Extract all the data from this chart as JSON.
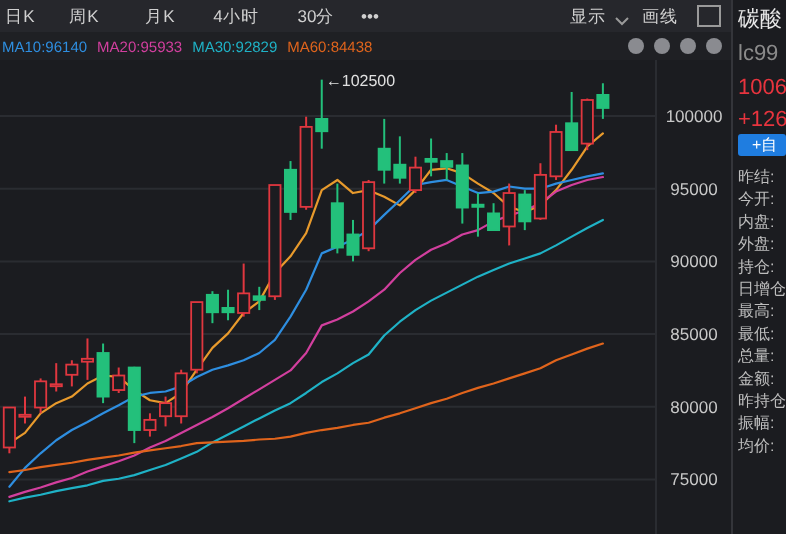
{
  "chart_data": {
    "type": "candlestick",
    "categories": [
      null,
      null,
      null,
      null,
      null,
      null,
      null,
      null,
      null,
      null,
      null,
      null,
      null,
      null,
      null,
      null,
      null,
      null,
      null,
      null,
      null,
      null,
      null,
      null,
      null,
      null,
      null,
      null,
      null,
      null,
      null,
      null,
      null,
      null,
      null,
      null,
      null,
      null,
      null
    ],
    "ohlc": [
      [
        77200,
        79950,
        76800,
        79950
      ],
      [
        79450,
        80700,
        78850,
        79450
      ],
      [
        79950,
        81950,
        79550,
        81750
      ],
      [
        81550,
        83000,
        81050,
        81550
      ],
      [
        82200,
        83200,
        81400,
        82900
      ],
      [
        83100,
        84700,
        81850,
        83300
      ],
      [
        83700,
        84350,
        80250,
        80700
      ],
      [
        81150,
        82700,
        80950,
        82150
      ],
      [
        82700,
        82750,
        77500,
        78400
      ],
      [
        78400,
        79550,
        77950,
        79100
      ],
      [
        79350,
        80700,
        78650,
        80250
      ],
      [
        79350,
        82550,
        78850,
        82300
      ],
      [
        82550,
        87200,
        82300,
        87200
      ],
      [
        87700,
        87950,
        85750,
        86500
      ],
      [
        86800,
        88050,
        85950,
        86500
      ],
      [
        86450,
        89850,
        86200,
        87800
      ],
      [
        87600,
        88250,
        86650,
        87350
      ],
      [
        87600,
        95250,
        87350,
        95250
      ],
      [
        96300,
        96900,
        92850,
        93400
      ],
      [
        93750,
        99950,
        93550,
        99250
      ],
      [
        99800,
        102500,
        97750,
        98950
      ],
      [
        94000,
        95350,
        90550,
        90950
      ],
      [
        91850,
        92850,
        90000,
        90450
      ],
      [
        90900,
        95600,
        90700,
        95450
      ],
      [
        97750,
        99800,
        95350,
        96300
      ],
      [
        96650,
        98600,
        95350,
        95750
      ],
      [
        94900,
        97200,
        94700,
        96450
      ],
      [
        97050,
        98450,
        95850,
        96850
      ],
      [
        96900,
        97450,
        95600,
        96500
      ],
      [
        96600,
        97450,
        92600,
        93700
      ],
      [
        93900,
        94700,
        91700,
        93750
      ],
      [
        93300,
        94000,
        92150,
        92150
      ],
      [
        92400,
        95350,
        91100,
        94700
      ],
      [
        94600,
        94900,
        92150,
        92750
      ],
      [
        92950,
        96750,
        92850,
        95950
      ],
      [
        95850,
        99400,
        95600,
        98900
      ],
      [
        99500,
        101650,
        97650,
        97650
      ],
      [
        98100,
        101200,
        97650,
        101100
      ],
      [
        101450,
        102250,
        99800,
        100550
      ]
    ],
    "colors": [
      "#e0373f",
      "#e0373f",
      "#e0373f",
      "#e0373f",
      "#e0373f",
      "#e0373f",
      "#23c07b",
      "#e0373f",
      "#23c07b",
      "#e0373f",
      "#e0373f",
      "#e0373f",
      "#e0373f",
      "#23c07b",
      "#23c07b",
      "#e0373f",
      "#23c07b",
      "#e0373f",
      "#23c07b",
      "#e0373f",
      "#23c07b",
      "#23c07b",
      "#23c07b",
      "#e0373f",
      "#23c07b",
      "#23c07b",
      "#e0373f",
      "#23c07b",
      "#23c07b",
      "#23c07b",
      "#23c07b",
      "#23c07b",
      "#e0373f",
      "#23c07b",
      "#e0373f",
      "#e0373f",
      "#23c07b",
      "#e0373f",
      "#23c07b"
    ],
    "series": [
      {
        "type": "line",
        "color": "#e89a2c",
        "values": [
          77500,
          78200,
          79550,
          80250,
          80700,
          81600,
          82150,
          82050,
          81150,
          80450,
          80250,
          80950,
          82550,
          84050,
          85050,
          86450,
          87250,
          89200,
          90350,
          91950,
          94900,
          95600,
          94700,
          94900,
          94450,
          93850,
          94900,
          96300,
          96400,
          96050,
          95350,
          94700,
          93750,
          93400,
          93850,
          94900,
          96300,
          97900,
          98800
        ]
      },
      {
        "type": "line",
        "name": "MA10:96140",
        "color": "#2e8ee0",
        "values": [
          74500,
          75800,
          76800,
          77700,
          78400,
          78950,
          79550,
          80100,
          80700,
          80950,
          81050,
          81400,
          82050,
          82550,
          82850,
          83200,
          83700,
          84600,
          86200,
          88050,
          90550,
          91000,
          91500,
          92150,
          93200,
          94200,
          95250,
          95450,
          95600,
          95150,
          94700,
          94800,
          95150,
          95000,
          95000,
          95350,
          95600,
          95850,
          96050
        ]
      },
      {
        "type": "line",
        "name": "MA20:95933",
        "color": "#d23f9e",
        "values": [
          73800,
          74150,
          74450,
          74800,
          75100,
          75550,
          75900,
          76250,
          76650,
          77200,
          77650,
          78200,
          78750,
          79300,
          79900,
          80550,
          81200,
          81850,
          82500,
          83700,
          85600,
          86000,
          86550,
          87250,
          88050,
          89200,
          90100,
          90800,
          91250,
          91850,
          92150,
          92750,
          93150,
          93500,
          94000,
          94800,
          95250,
          95600,
          95800
        ]
      },
      {
        "type": "line",
        "name": "MA30:92829",
        "color": "#1fb2c6",
        "values": [
          73500,
          73750,
          73950,
          74200,
          74400,
          74600,
          74900,
          75050,
          75300,
          75650,
          76000,
          76450,
          76900,
          77550,
          78100,
          78650,
          79200,
          79750,
          80250,
          80950,
          81700,
          82300,
          83000,
          83600,
          84900,
          85850,
          86650,
          87300,
          87850,
          88400,
          88950,
          89400,
          89850,
          90200,
          90550,
          91100,
          91700,
          92300,
          92850
        ]
      },
      {
        "type": "line",
        "name": "MA60:84438",
        "color": "#e0641c",
        "values": [
          75500,
          75650,
          75850,
          76000,
          76150,
          76350,
          76500,
          76650,
          76850,
          77000,
          77150,
          77300,
          77500,
          77550,
          77600,
          77650,
          77750,
          77800,
          77950,
          78200,
          78400,
          78550,
          78750,
          78900,
          79250,
          79550,
          79900,
          80250,
          80550,
          80950,
          81300,
          81600,
          81950,
          82300,
          82650,
          83200,
          83600,
          84000,
          84350
        ]
      }
    ],
    "ylim": [
      71250,
      103850
    ],
    "yticks": [
      75000,
      80000,
      85000,
      90000,
      95000,
      100000
    ],
    "grid": "y",
    "legend": "top left",
    "annotations": [
      "←102500",
      "日K",
      "周K",
      "月K",
      "4小时",
      "30分",
      "•••",
      "显示",
      "画线",
      "碳酸",
      "lc99",
      "1006",
      "+126",
      "+自",
      "昨结:",
      "今开:",
      "内盘:",
      "外盘:",
      "持仓:",
      "日增仓",
      "最高:",
      "最低:",
      "总量:",
      "金额:",
      "昨持仓",
      "振幅:",
      "均价:"
    ]
  }
}
